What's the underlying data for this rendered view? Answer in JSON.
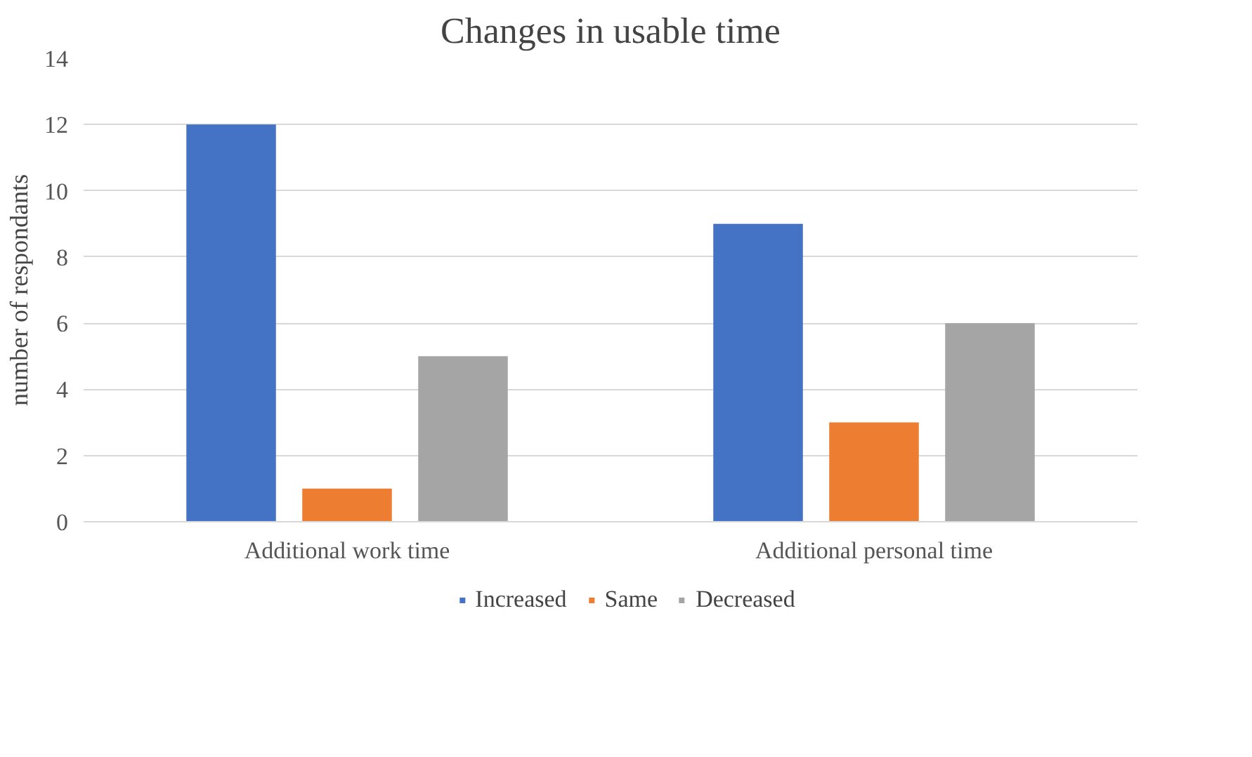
{
  "chart_data": {
    "type": "bar",
    "title": "Changes in usable time",
    "ylabel": "number of respondants",
    "categories": [
      "Additional work time",
      "Additional personal time"
    ],
    "series": [
      {
        "name": "Increased",
        "color": "#4472c4",
        "values": [
          12,
          9
        ]
      },
      {
        "name": "Same",
        "color": "#ed7d31",
        "values": [
          1,
          3
        ]
      },
      {
        "name": "Decreased",
        "color": "#a5a5a5",
        "values": [
          5,
          6
        ]
      }
    ],
    "ylim": [
      0,
      14
    ],
    "yticks": [
      0,
      2,
      4,
      6,
      8,
      10,
      12,
      14
    ],
    "grid": "y",
    "legend": "bottom"
  }
}
